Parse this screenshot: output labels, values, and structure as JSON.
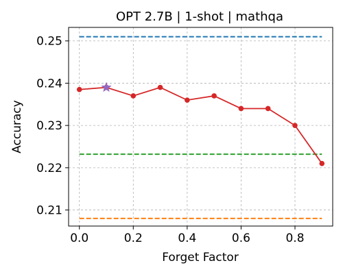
{
  "chart_data": {
    "type": "line",
    "title": "OPT 2.7B | 1-shot | mathqa",
    "xlabel": "Forget Factor",
    "ylabel": "Accuracy",
    "xlim": [
      -0.04,
      0.94
    ],
    "ylim": [
      0.2062,
      0.2532
    ],
    "xticks": [
      0.0,
      0.2,
      0.4,
      0.6,
      0.8
    ],
    "xtick_labels": [
      "0.0",
      "0.2",
      "0.4",
      "0.6",
      "0.8"
    ],
    "yticks": [
      0.21,
      0.22,
      0.23,
      0.24,
      0.25
    ],
    "ytick_labels": [
      "0.21",
      "0.22",
      "0.23",
      "0.24",
      "0.25"
    ],
    "grid": true,
    "series": [
      {
        "color": "#d62728",
        "marker": "circle",
        "x": [
          0.0,
          0.1,
          0.2,
          0.3,
          0.4,
          0.5,
          0.6,
          0.7,
          0.8,
          0.9
        ],
        "y": [
          0.2385,
          0.239,
          0.237,
          0.239,
          0.236,
          0.237,
          0.234,
          0.234,
          0.23,
          0.221
        ]
      }
    ],
    "highlight_point": {
      "x": 0.1,
      "y": 0.239,
      "color": "#9467bd",
      "marker": "star"
    },
    "reference_lines": [
      {
        "y": 0.251,
        "color": "#1f77b4",
        "style": "dashed",
        "x_range": [
          0.0,
          0.9
        ]
      },
      {
        "y": 0.2232,
        "color": "#2ca02c",
        "style": "dashed",
        "x_range": [
          0.0,
          0.9
        ]
      },
      {
        "y": 0.208,
        "color": "#ff7f0e",
        "style": "dashed",
        "x_range": [
          0.0,
          0.9
        ]
      }
    ]
  }
}
